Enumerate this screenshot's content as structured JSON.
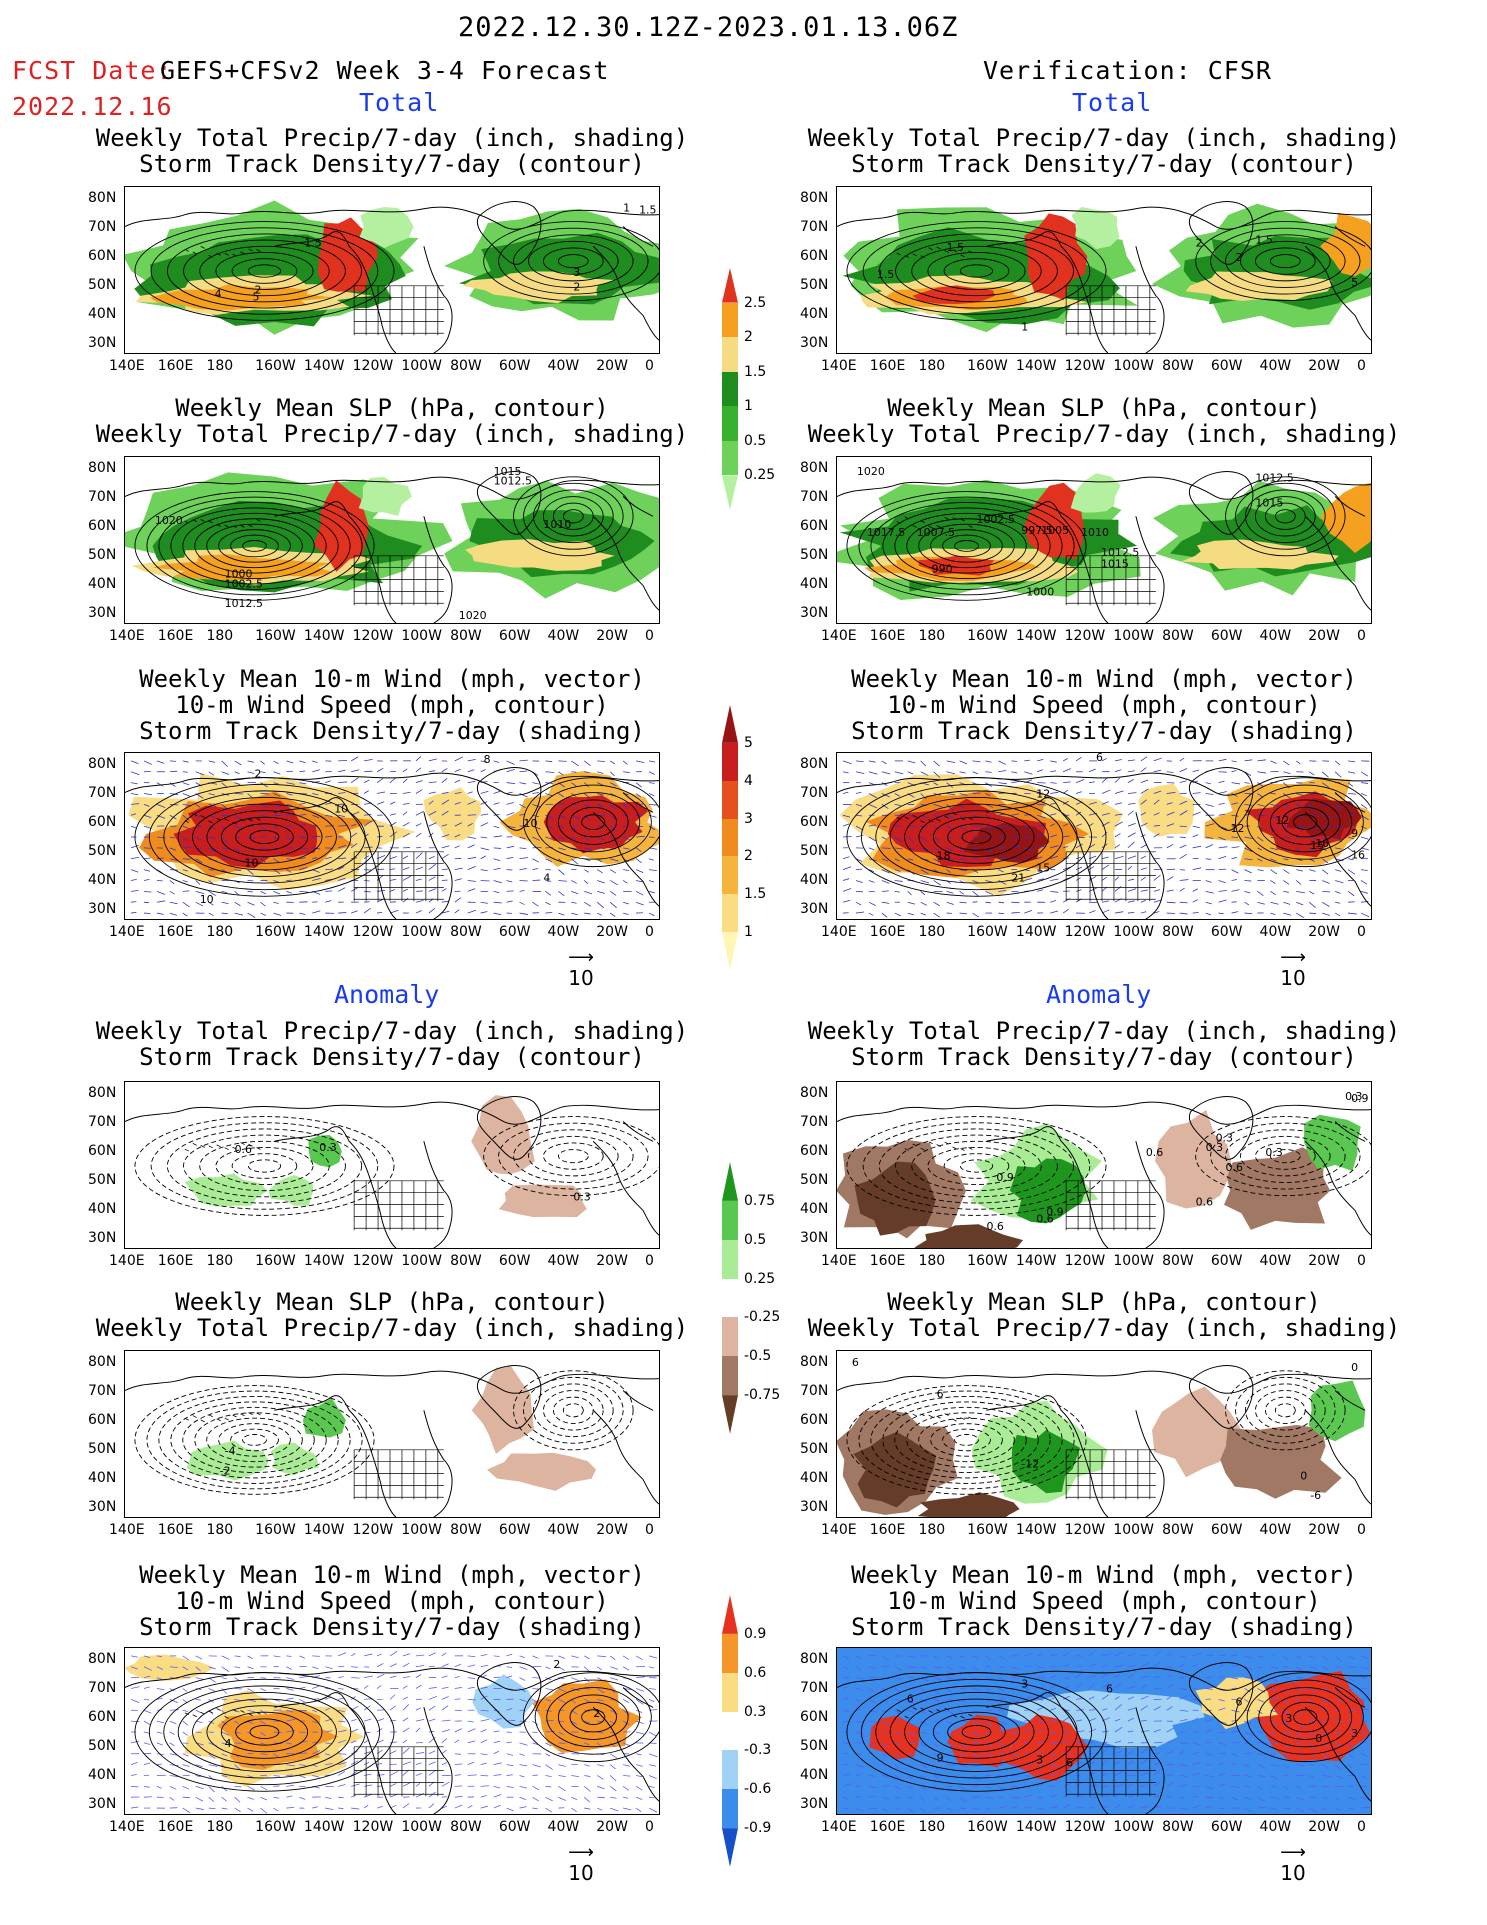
{
  "header": {
    "date_range": "2022.12.30.12Z-2023.01.13.06Z",
    "fcst_label": "FCST Date:",
    "fcst_model": "GEFS+CFSv2 Week 3-4 Forecast",
    "fcst_date": "2022.12.16",
    "verification": "Verification: CFSR"
  },
  "sections": {
    "total": "Total",
    "anomaly": "Anomaly"
  },
  "titles": {
    "precip_storm": [
      "Weekly Total Precip/7-day (inch, shading)",
      "Storm Track Density/7-day (contour)"
    ],
    "slp_precip": [
      "Weekly Mean SLP (hPa, contour)",
      "Weekly Total Precip/7-day (inch, shading)"
    ],
    "wind_storm": [
      "Weekly Mean 10-m Wind (mph, vector)",
      "10-m Wind Speed (mph, contour)",
      "Storm Track Density/7-day (shading)"
    ]
  },
  "lat_labels": [
    "80N",
    "70N",
    "60N",
    "50N",
    "40N",
    "30N"
  ],
  "lon_labels": [
    "140E",
    "160E",
    "180",
    "160W",
    "140W",
    "120W",
    "100W",
    "80W",
    "60W",
    "40W",
    "20W",
    "0"
  ],
  "vector_ref": "10",
  "colorbars": {
    "precip_total": [
      "0.25",
      "0.5",
      "1",
      "1.5",
      "2",
      "2.5"
    ],
    "storm_total": [
      "1",
      "1.5",
      "2",
      "3",
      "4",
      "5"
    ],
    "precip_anom": [
      "-0.75",
      "-0.5",
      "-0.25",
      "0.25",
      "0.5",
      "0.75"
    ],
    "storm_anom": [
      "-0.9",
      "-0.6",
      "-0.3",
      "0.3",
      "0.6",
      "0.9"
    ]
  },
  "colors": {
    "red_text": "#e02020",
    "blue_text": "#1a3cf0",
    "precip_total": [
      "#b4f0a0",
      "#6ed25a",
      "#38b030",
      "#1e8c1e",
      "#f5dc82",
      "#f5a01e",
      "#e0321e"
    ],
    "storm_total": [
      "#fff5b4",
      "#fadc82",
      "#f5b43c",
      "#f08c1e",
      "#e6501e",
      "#c81e1e",
      "#961414"
    ],
    "precip_anom": [
      "#643c28",
      "#a07864",
      "#dcb4a0",
      "#ffffff",
      "#aaeb96",
      "#5ac850",
      "#1e961e"
    ],
    "storm_anom": [
      "#1450c8",
      "#3c8ceb",
      "#a0d2f5",
      "#ffffff",
      "#fadc82",
      "#f59628",
      "#e6321e"
    ]
  },
  "contour_labels": {
    "t_left_1": [
      "1",
      "1.5",
      "1.5",
      "4",
      "5",
      "2",
      "3",
      "2"
    ],
    "t_right_1": [
      "1.5",
      "1.5",
      "2",
      "2",
      "1",
      "5",
      "1.5"
    ],
    "t_left_2": [
      "1020",
      "1010",
      "1015",
      "1012.5",
      "1000",
      "1002.5",
      "1012.5",
      "1020"
    ],
    "t_right_2": [
      "1020",
      "1002.5",
      "997.5",
      "1017.5",
      "1007.5",
      "1005",
      "1010",
      "1012.5",
      "1015",
      "990",
      "1000",
      "1012.5",
      "1015"
    ],
    "t_left_3": [
      "2",
      "10",
      "10",
      "10",
      "10",
      "4",
      "8"
    ],
    "t_right_3": [
      "12",
      "16",
      "18",
      "21",
      "15",
      "12",
      "12",
      "15",
      "9",
      "16",
      "6"
    ],
    "a_left_1": [
      "0.6",
      "0.3",
      "0.3"
    ],
    "a_right_1": [
      "0.3",
      "0.9",
      "0.9",
      "0.6",
      "0.6",
      "0.3",
      "0.6",
      "0.3",
      "0.9",
      "0.6",
      "0.3",
      "0.6"
    ],
    "a_left_2": [
      "-4",
      "-2"
    ],
    "a_right_2": [
      "6",
      "6",
      "-12",
      "0",
      "0",
      "-6"
    ],
    "a_left_3": [
      "2",
      "4",
      "2"
    ],
    "a_right_3": [
      "6",
      "3",
      "9",
      "6",
      "3",
      "6",
      "6",
      "3",
      "3",
      "0"
    ]
  }
}
